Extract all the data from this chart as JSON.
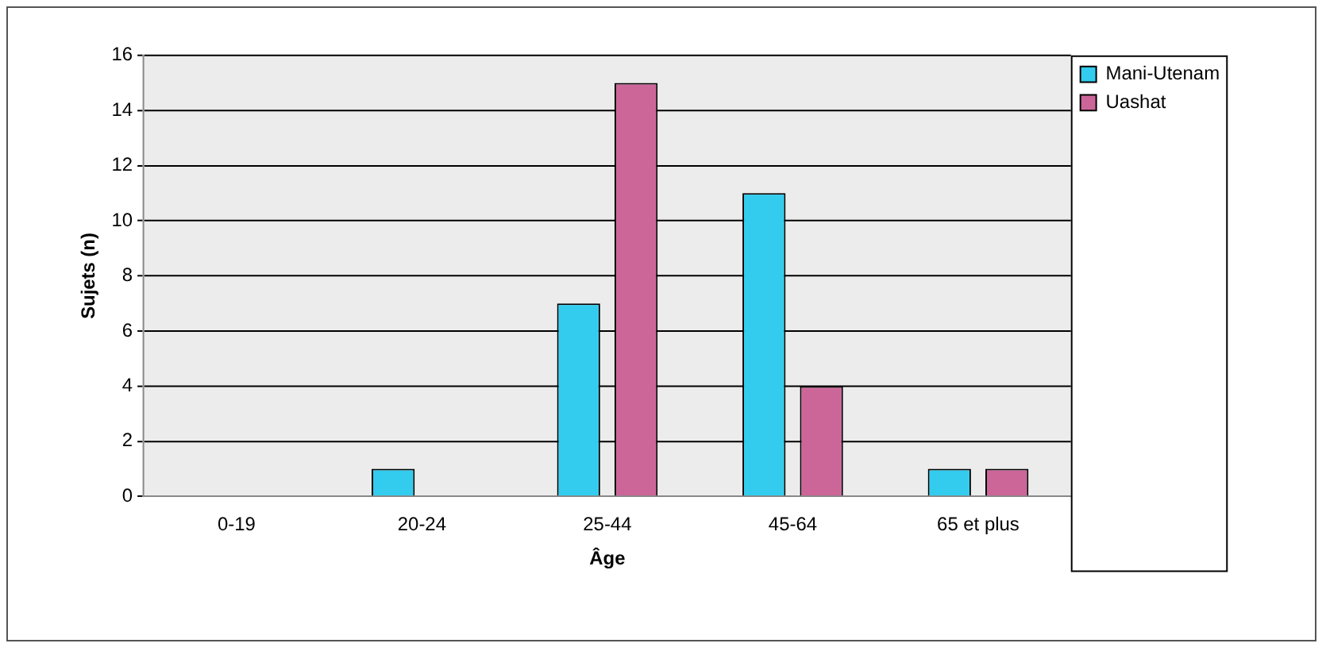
{
  "chart_data": {
    "type": "bar",
    "xlabel": "Âge",
    "ylabel": "Sujets (n)",
    "categories": [
      "0-19",
      "20-24",
      "25-44",
      "45-64",
      "65 et plus"
    ],
    "series": [
      {
        "name": "Mani-Utenam",
        "color": "#33ccee",
        "values": [
          0,
          1,
          7,
          11,
          1
        ]
      },
      {
        "name": "Uashat",
        "color": "#cc6699",
        "values": [
          0,
          0,
          15,
          4,
          1
        ]
      }
    ],
    "ylim": [
      0,
      16
    ],
    "yticks": [
      0,
      2,
      4,
      6,
      8,
      10,
      12,
      14,
      16
    ],
    "grid": "y",
    "legend": "right"
  }
}
